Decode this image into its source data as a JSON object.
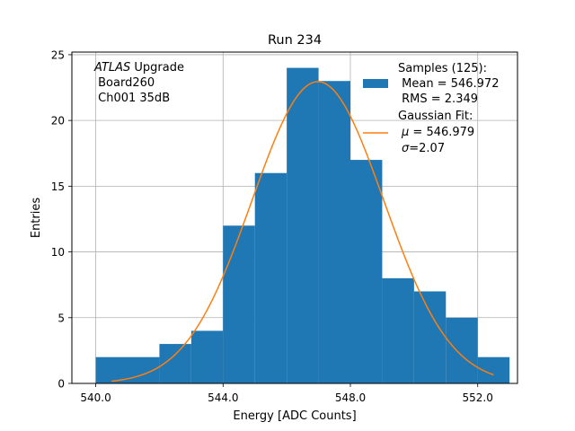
{
  "chart_data": {
    "type": "bar",
    "title": "Run 234",
    "xlabel": "Energy [ADC Counts]",
    "ylabel": "Entries",
    "xlim": [
      539.25,
      553.25
    ],
    "ylim": [
      0,
      25.2
    ],
    "grid": true,
    "x_ticks": [
      540,
      544,
      548,
      552
    ],
    "x_tick_labels": [
      "540.0",
      "544.0",
      "548.0",
      "552.0"
    ],
    "y_ticks": [
      0,
      5,
      10,
      15,
      20,
      25
    ],
    "y_tick_labels": [
      "0",
      "5",
      "10",
      "15",
      "20",
      "25"
    ],
    "bins": {
      "edges": [
        540.0,
        541.0,
        542.0,
        543.0,
        544.0,
        545.0,
        546.0,
        547.0,
        548.0,
        549.0,
        550.0,
        551.0,
        552.0,
        553.0
      ],
      "counts": [
        2,
        2,
        3,
        4,
        12,
        16,
        24,
        23,
        17,
        8,
        7,
        5,
        2
      ],
      "color": "#1f77b4"
    },
    "fit": {
      "mu": 546.979,
      "sigma": 2.07,
      "peak": 22.95,
      "x_range": [
        540.5,
        552.5
      ],
      "color": "#ff7f0e"
    },
    "annotation": {
      "italic": "ATLAS",
      "rest": " Upgrade",
      "line2": " Board260",
      "line3": " Ch001 35dB"
    },
    "legend": {
      "placement": "top-right",
      "samples_title": "Samples (125):",
      "samples_mean": " Mean = 546.972",
      "samples_rms": " RMS = 2.349",
      "fit_title": "Gaussian Fit:",
      "fit_mu_symbol": "μ",
      "fit_mu_value": " = 546.979",
      "fit_sigma_symbol": "σ",
      "fit_sigma_value": "=2.07"
    }
  }
}
